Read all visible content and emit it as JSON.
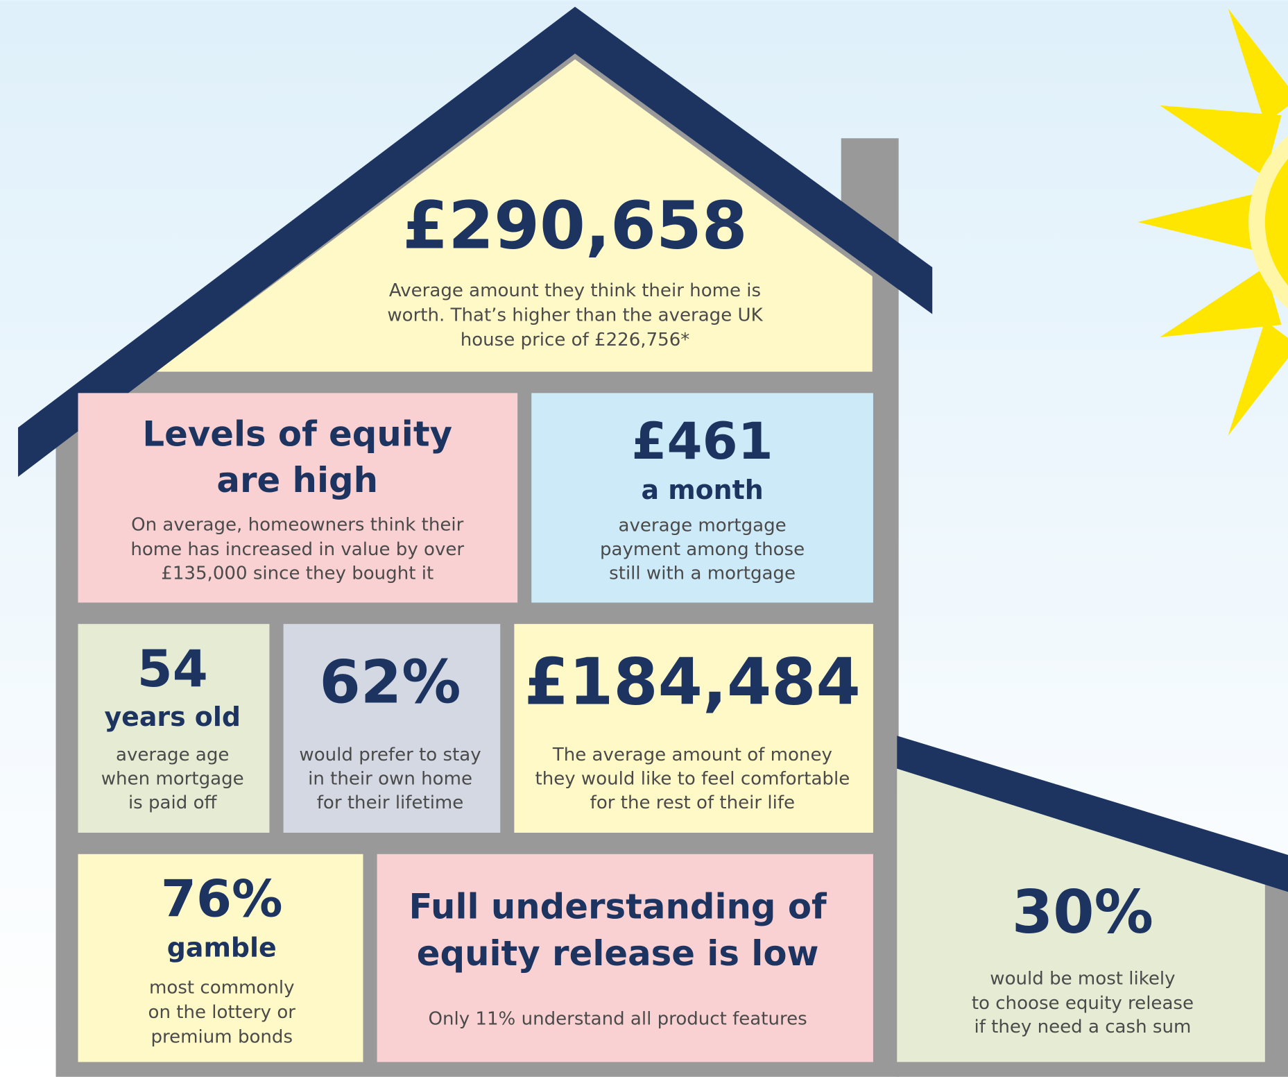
{
  "panels": [
    {
      "big": [
        "£290,658"
      ],
      "body": [
        "Average amount they think their home is",
        "worth. That’s higher than the average UK",
        "house price of £226,756*"
      ]
    },
    {
      "big": [
        "Levels of equity",
        "are high"
      ],
      "body": [
        "On average, homeowners think their",
        "home has increased in value by over",
        "£135,000 since they bought it"
      ]
    },
    {
      "big": [
        "£461"
      ],
      "sub": "a month",
      "body": [
        "average mortgage",
        "payment among those",
        "still with a mortgage"
      ]
    },
    {
      "big": [
        "54"
      ],
      "sub": "years old",
      "body": [
        "average age",
        "when mortgage",
        "is paid off"
      ]
    },
    {
      "big": [
        "62%"
      ],
      "body": [
        "would prefer to stay",
        "in their own home",
        "for their lifetime"
      ]
    },
    {
      "big": [
        "£184,484"
      ],
      "body": [
        "The average amount of money",
        "they would like to feel comfortable",
        "for the rest of their life"
      ]
    },
    {
      "big": [
        "76%"
      ],
      "sub": "gamble",
      "body": [
        "most commonly",
        "on the lottery or",
        "premium bonds"
      ]
    },
    {
      "big": [
        "Full understanding of",
        "equity release is low"
      ],
      "body": [
        "Only 11% understand all product features"
      ]
    },
    {
      "big": [
        "30%"
      ],
      "body": [
        "would be most likely",
        "to choose equity release",
        "if they need a cash sum"
      ]
    }
  ]
}
